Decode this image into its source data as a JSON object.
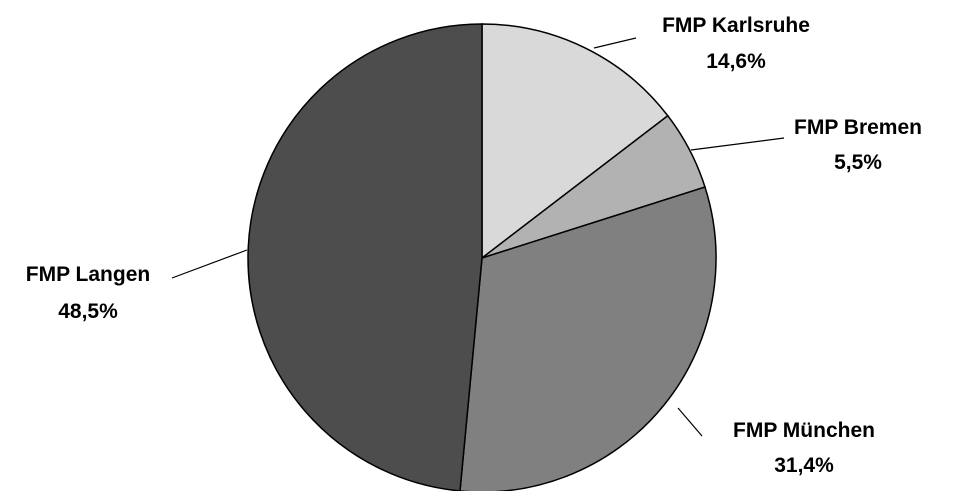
{
  "chart_data": {
    "type": "pie",
    "title": "",
    "slices": [
      {
        "name": "FMP Karlsruhe",
        "value": 14.6,
        "label": "14,6%",
        "color": "#d9d9d9"
      },
      {
        "name": "FMP Bremen",
        "value": 5.5,
        "label": "5,5%",
        "color": "#b2b2b2"
      },
      {
        "name": "FMP München",
        "value": 31.4,
        "label": "31,4%",
        "color": "#808080"
      },
      {
        "name": "FMP Langen",
        "value": 48.5,
        "label": "48,5%",
        "color": "#4d4d4d"
      }
    ],
    "start_angle": "12 o'clock",
    "direction": "clockwise",
    "legend": "none"
  }
}
